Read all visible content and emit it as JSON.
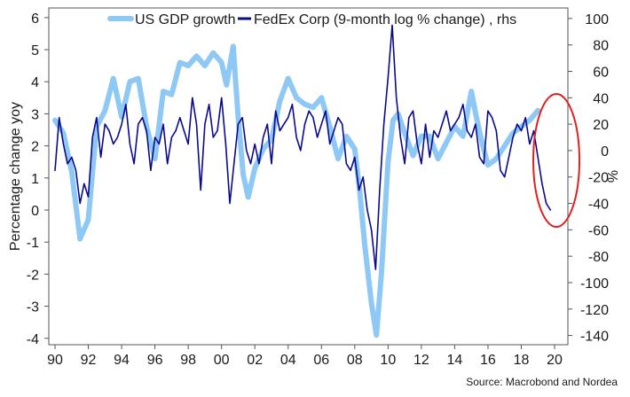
{
  "chart_data": {
    "type": "line",
    "legend": {
      "placement": "top"
    },
    "x_range": [
      1990,
      2020
    ],
    "x_tick_labels": [
      "90",
      "92",
      "94",
      "96",
      "98",
      "00",
      "02",
      "04",
      "06",
      "08",
      "10",
      "12",
      "14",
      "16",
      "18",
      "20"
    ],
    "left_axis": {
      "label": "Percentage change yoy",
      "ylim": [
        -4.2,
        6.3
      ],
      "ticks": [
        -4,
        -3,
        -2,
        -1,
        0,
        1,
        2,
        3,
        4,
        5,
        6
      ]
    },
    "right_axis": {
      "label": "%",
      "ylim": [
        -147,
        108
      ],
      "ticks": [
        -140,
        -120,
        -100,
        -80,
        -60,
        -40,
        -20,
        0,
        20,
        40,
        60,
        80,
        100
      ]
    },
    "series": [
      {
        "name": "US GDP growth",
        "axis": "left",
        "color": "#8ec8f5",
        "x": [
          1990.0,
          1990.5,
          1991.0,
          1991.5,
          1992.0,
          1992.5,
          1993.0,
          1993.5,
          1994.0,
          1994.5,
          1995.0,
          1995.5,
          1996.0,
          1996.5,
          1997.0,
          1997.5,
          1998.0,
          1998.5,
          1999.0,
          1999.5,
          2000.0,
          2000.3,
          2000.7,
          2001.0,
          2001.3,
          2001.6,
          2002.0,
          2002.5,
          2003.0,
          2003.5,
          2004.0,
          2004.5,
          2005.0,
          2005.5,
          2006.0,
          2006.5,
          2007.0,
          2007.5,
          2008.0,
          2008.3,
          2008.6,
          2009.0,
          2009.3,
          2009.6,
          2010.0,
          2010.3,
          2010.6,
          2011.0,
          2011.5,
          2012.0,
          2012.5,
          2013.0,
          2013.5,
          2014.0,
          2014.5,
          2015.0,
          2015.3,
          2015.6,
          2016.0,
          2016.5,
          2017.0,
          2017.5,
          2018.0,
          2018.5,
          2019.0
        ],
        "values": [
          2.8,
          2.4,
          1.2,
          -0.9,
          -0.3,
          2.6,
          3.1,
          4.1,
          2.9,
          4.0,
          4.1,
          2.6,
          1.6,
          3.7,
          3.6,
          4.6,
          4.5,
          4.8,
          4.5,
          4.9,
          4.6,
          3.9,
          5.1,
          2.9,
          1.1,
          0.4,
          1.3,
          1.9,
          2.2,
          3.4,
          4.1,
          3.5,
          3.3,
          3.2,
          3.5,
          2.6,
          1.6,
          2.3,
          1.9,
          0.6,
          -1.1,
          -2.9,
          -3.9,
          -2.0,
          1.5,
          2.8,
          3.0,
          2.4,
          1.7,
          2.3,
          2.3,
          1.6,
          2.1,
          2.6,
          2.3,
          3.7,
          2.9,
          2.2,
          1.4,
          1.6,
          2.0,
          2.4,
          2.6,
          2.8,
          3.1
        ]
      },
      {
        "name": "FedEx Corp (9-month log % change) , rhs",
        "axis": "right",
        "color": "#0a0a8c",
        "x": [
          1990.0,
          1990.25,
          1990.5,
          1990.75,
          1991.0,
          1991.25,
          1991.5,
          1991.75,
          1992.0,
          1992.25,
          1992.5,
          1992.75,
          1993.0,
          1993.25,
          1993.5,
          1993.75,
          1994.0,
          1994.25,
          1994.5,
          1994.75,
          1995.0,
          1995.25,
          1995.5,
          1995.75,
          1996.0,
          1996.25,
          1996.5,
          1996.75,
          1997.0,
          1997.25,
          1997.5,
          1997.75,
          1998.0,
          1998.25,
          1998.5,
          1998.75,
          1999.0,
          1999.25,
          1999.5,
          1999.75,
          2000.0,
          2000.25,
          2000.5,
          2000.75,
          2001.0,
          2001.25,
          2001.5,
          2001.75,
          2002.0,
          2002.25,
          2002.5,
          2002.75,
          2003.0,
          2003.25,
          2003.5,
          2003.75,
          2004.0,
          2004.25,
          2004.5,
          2004.75,
          2005.0,
          2005.25,
          2005.5,
          2005.75,
          2006.0,
          2006.25,
          2006.5,
          2006.75,
          2007.0,
          2007.25,
          2007.5,
          2007.75,
          2008.0,
          2008.25,
          2008.5,
          2008.75,
          2009.0,
          2009.25,
          2009.5,
          2009.75,
          2010.0,
          2010.25,
          2010.5,
          2010.75,
          2011.0,
          2011.25,
          2011.5,
          2011.75,
          2012.0,
          2012.25,
          2012.5,
          2012.75,
          2013.0,
          2013.25,
          2013.5,
          2013.75,
          2014.0,
          2014.25,
          2014.5,
          2014.75,
          2015.0,
          2015.25,
          2015.5,
          2015.75,
          2016.0,
          2016.25,
          2016.5,
          2016.75,
          2017.0,
          2017.25,
          2017.5,
          2017.75,
          2018.0,
          2018.25,
          2018.5,
          2018.75,
          2019.0,
          2019.25,
          2019.5,
          2019.75
        ],
        "values": [
          -15,
          25,
          5,
          -10,
          -5,
          -15,
          -40,
          -25,
          -35,
          10,
          25,
          -5,
          20,
          15,
          5,
          10,
          20,
          35,
          5,
          -10,
          20,
          25,
          15,
          -15,
          10,
          5,
          20,
          -10,
          10,
          15,
          25,
          15,
          5,
          40,
          20,
          -30,
          20,
          35,
          10,
          15,
          40,
          5,
          -40,
          -10,
          20,
          25,
          0,
          -10,
          5,
          -10,
          10,
          20,
          -10,
          30,
          15,
          20,
          25,
          35,
          10,
          0,
          20,
          30,
          25,
          10,
          20,
          30,
          5,
          15,
          25,
          20,
          -10,
          -15,
          -5,
          -30,
          -20,
          -45,
          -60,
          -90,
          -30,
          20,
          55,
          95,
          40,
          10,
          -10,
          25,
          30,
          5,
          -10,
          20,
          -5,
          15,
          10,
          20,
          30,
          15,
          20,
          25,
          35,
          15,
          10,
          20,
          -5,
          -10,
          30,
          25,
          15,
          -15,
          -20,
          -5,
          10,
          20,
          15,
          25,
          5,
          15,
          -5,
          -25,
          -40,
          -45
        ]
      }
    ],
    "annotations": [
      {
        "type": "ellipse",
        "color": "#e02020",
        "target": "late 2018-2019 FedEx decline"
      }
    ]
  },
  "source": "Source: Macrobond and Nordea"
}
